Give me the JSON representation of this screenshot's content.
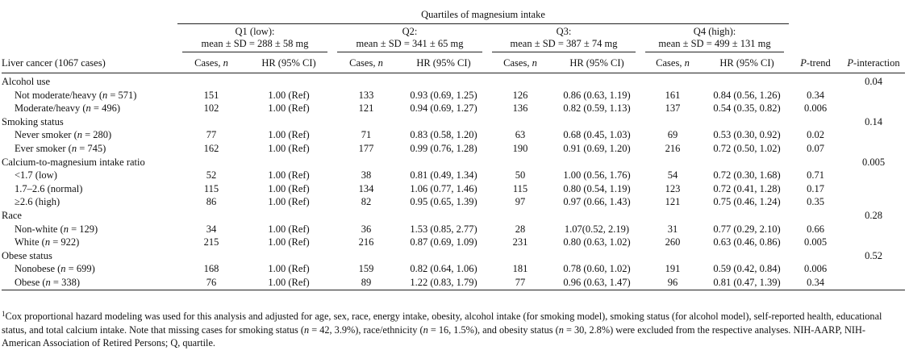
{
  "table": {
    "super_header": "Quartiles of magnesium intake",
    "quartiles": [
      {
        "title": "Q1 (low):",
        "stats": "mean ± SD = 288 ± 58 mg"
      },
      {
        "title": "Q2:",
        "stats": "mean ± SD = 341 ± 65 mg"
      },
      {
        "title": "Q3:",
        "stats": "mean ± SD = 387 ± 74 mg"
      },
      {
        "title": "Q4 (high):",
        "stats": "mean ± SD = 499 ± 131 mg"
      }
    ],
    "col_headers": {
      "outcome": "Liver cancer (1067 cases)",
      "cases": "Cases, n",
      "hr": "HR (95% CI)",
      "p_trend": "P-trend",
      "p_interaction": "P-interaction"
    },
    "groups": [
      {
        "label": "Alcohol use",
        "p_interaction": "0.04",
        "rows": [
          {
            "label": "Not moderate/heavy (n = 571)",
            "values": [
              "151",
              "1.00 (Ref)",
              "133",
              "0.93 (0.69, 1.25)",
              "126",
              "0.86 (0.63, 1.19)",
              "161",
              "0.84 (0.56, 1.26)"
            ],
            "p_trend": "0.34"
          },
          {
            "label": "Moderate/heavy (n = 496)",
            "values": [
              "102",
              "1.00 (Ref)",
              "121",
              "0.94 (0.69, 1.27)",
              "136",
              "0.82 (0.59, 1.13)",
              "137",
              "0.54 (0.35, 0.82)"
            ],
            "p_trend": "0.006"
          }
        ]
      },
      {
        "label": "Smoking status",
        "p_interaction": "0.14",
        "rows": [
          {
            "label": "Never smoker (n = 280)",
            "values": [
              "77",
              "1.00 (Ref)",
              "71",
              "0.83 (0.58, 1.20)",
              "63",
              "0.68 (0.45, 1.03)",
              "69",
              "0.53 (0.30, 0.92)"
            ],
            "p_trend": "0.02"
          },
          {
            "label": "Ever smoker (n = 745)",
            "values": [
              "162",
              "1.00 (Ref)",
              "177",
              "0.99 (0.76, 1.28)",
              "190",
              "0.91 (0.69, 1.20)",
              "216",
              "0.72 (0.50, 1.02)"
            ],
            "p_trend": "0.07"
          }
        ]
      },
      {
        "label": "Calcium-to-magnesium intake ratio",
        "p_interaction": "0.005",
        "rows": [
          {
            "label": "<1.7 (low)",
            "values": [
              "52",
              "1.00 (Ref)",
              "38",
              "0.81 (0.49, 1.34)",
              "50",
              "1.00 (0.56, 1.76)",
              "54",
              "0.72 (0.30, 1.68)"
            ],
            "p_trend": "0.71"
          },
          {
            "label": "1.7–2.6 (normal)",
            "values": [
              "115",
              "1.00 (Ref)",
              "134",
              "1.06 (0.77, 1.46)",
              "115",
              "0.80 (0.54, 1.19)",
              "123",
              "0.72 (0.41, 1.28)"
            ],
            "p_trend": "0.17"
          },
          {
            "label": "≥2.6 (high)",
            "values": [
              "86",
              "1.00 (Ref)",
              "82",
              "0.95 (0.65, 1.39)",
              "97",
              "0.97 (0.66, 1.43)",
              "121",
              "0.75 (0.46, 1.24)"
            ],
            "p_trend": "0.35"
          }
        ]
      },
      {
        "label": "Race",
        "p_interaction": "0.28",
        "rows": [
          {
            "label": "Non-white (n = 129)",
            "values": [
              "34",
              "1.00 (Ref)",
              "36",
              "1.53 (0.85, 2.77)",
              "28",
              "1.07(0.52, 2.19)",
              "31",
              "0.77 (0.29, 2.10)"
            ],
            "p_trend": "0.66"
          },
          {
            "label": "White (n = 922)",
            "values": [
              "215",
              "1.00 (Ref)",
              "216",
              "0.87 (0.69, 1.09)",
              "231",
              "0.80 (0.63, 1.02)",
              "260",
              "0.63 (0.46, 0.86)"
            ],
            "p_trend": "0.005"
          }
        ]
      },
      {
        "label": "Obese status",
        "p_interaction": "0.52",
        "rows": [
          {
            "label": "Nonobese (n = 699)",
            "values": [
              "168",
              "1.00 (Ref)",
              "159",
              "0.82 (0.64, 1.06)",
              "181",
              "0.78 (0.60, 1.02)",
              "191",
              "0.59 (0.42, 0.84)"
            ],
            "p_trend": "0.006"
          },
          {
            "label": "Obese (n = 338)",
            "values": [
              "76",
              "1.00 (Ref)",
              "89",
              "1.22 (0.83, 1.79)",
              "77",
              "0.96 (0.63, 1.47)",
              "96",
              "0.81 (0.47, 1.39)"
            ],
            "p_trend": "0.34"
          }
        ]
      }
    ]
  },
  "footnote": {
    "marker": "1",
    "text": "Cox proportional hazard modeling was used for this analysis and adjusted for age, sex, race, energy intake, obesity, alcohol intake (for smoking model), smoking status (for alcohol model), self-reported health, educational status, and total calcium intake. Note that missing cases for smoking status (n = 42, 3.9%), race/ethnicity (n = 16, 1.5%), and obesity status (n = 30, 2.8%) were excluded from the respective analyses. NIH-AARP, NIH-American Association of Retired Persons; Q, quartile."
  }
}
